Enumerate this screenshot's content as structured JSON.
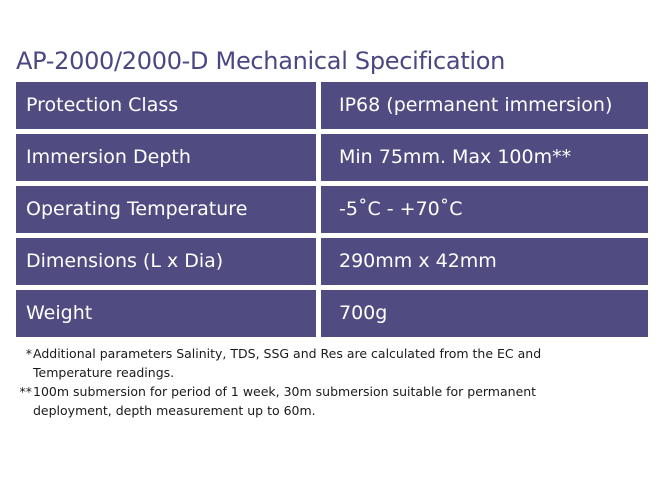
{
  "title": "AP-2000/2000-D Mechanical Specification",
  "specs": [
    {
      "label": "Protection Class",
      "value": "IP68 (permanent immersion)"
    },
    {
      "label": "Immersion Depth",
      "value": "Min 75mm. Max 100m**"
    },
    {
      "label": "Operating Temperature",
      "value": "-5˚C - +70˚C"
    },
    {
      "label": "Dimensions (L x Dia)",
      "value": "290mm x 42mm"
    },
    {
      "label": "Weight",
      "value": "700g"
    }
  ],
  "notes": [
    {
      "mark": "*",
      "line1": "Additional parameters Salinity, TDS, SSG and Res are calculated from the EC and",
      "line2": "Temperature readings."
    },
    {
      "mark": "**",
      "line1": "100m submersion for period of 1 week, 30m submersion suitable for permanent",
      "line2": "deployment, depth measurement up to 60m."
    }
  ],
  "colors": {
    "row_background": "#504c82",
    "title": "#4a4783",
    "row_text": "#ffffff"
  }
}
